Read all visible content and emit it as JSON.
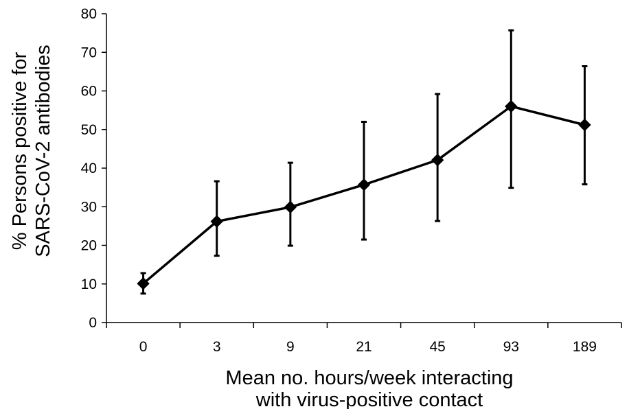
{
  "chart_data": {
    "type": "line",
    "title": "",
    "xlabel_lines": [
      "Mean no. hours/week interacting",
      "with virus-positive contact"
    ],
    "ylabel_lines": [
      "% Persons positive for",
      "SARS-CoV-2 antibodies"
    ],
    "categories": [
      "0",
      "3",
      "9",
      "21",
      "45",
      "93",
      "189"
    ],
    "ylim": [
      0,
      80
    ],
    "yticks": [
      0,
      10,
      20,
      30,
      40,
      50,
      60,
      70,
      80
    ],
    "grid": false,
    "legend": "none",
    "series": [
      {
        "values": [
          10.1,
          26.2,
          29.9,
          35.7,
          42.1,
          56.0,
          51.2
        ],
        "error_low": [
          7.5,
          17.3,
          19.9,
          21.5,
          26.3,
          34.9,
          35.8
        ],
        "error_high": [
          12.8,
          36.6,
          41.4,
          52.0,
          59.2,
          75.7,
          66.4
        ],
        "color": "#000000",
        "marker": "diamond"
      }
    ]
  }
}
